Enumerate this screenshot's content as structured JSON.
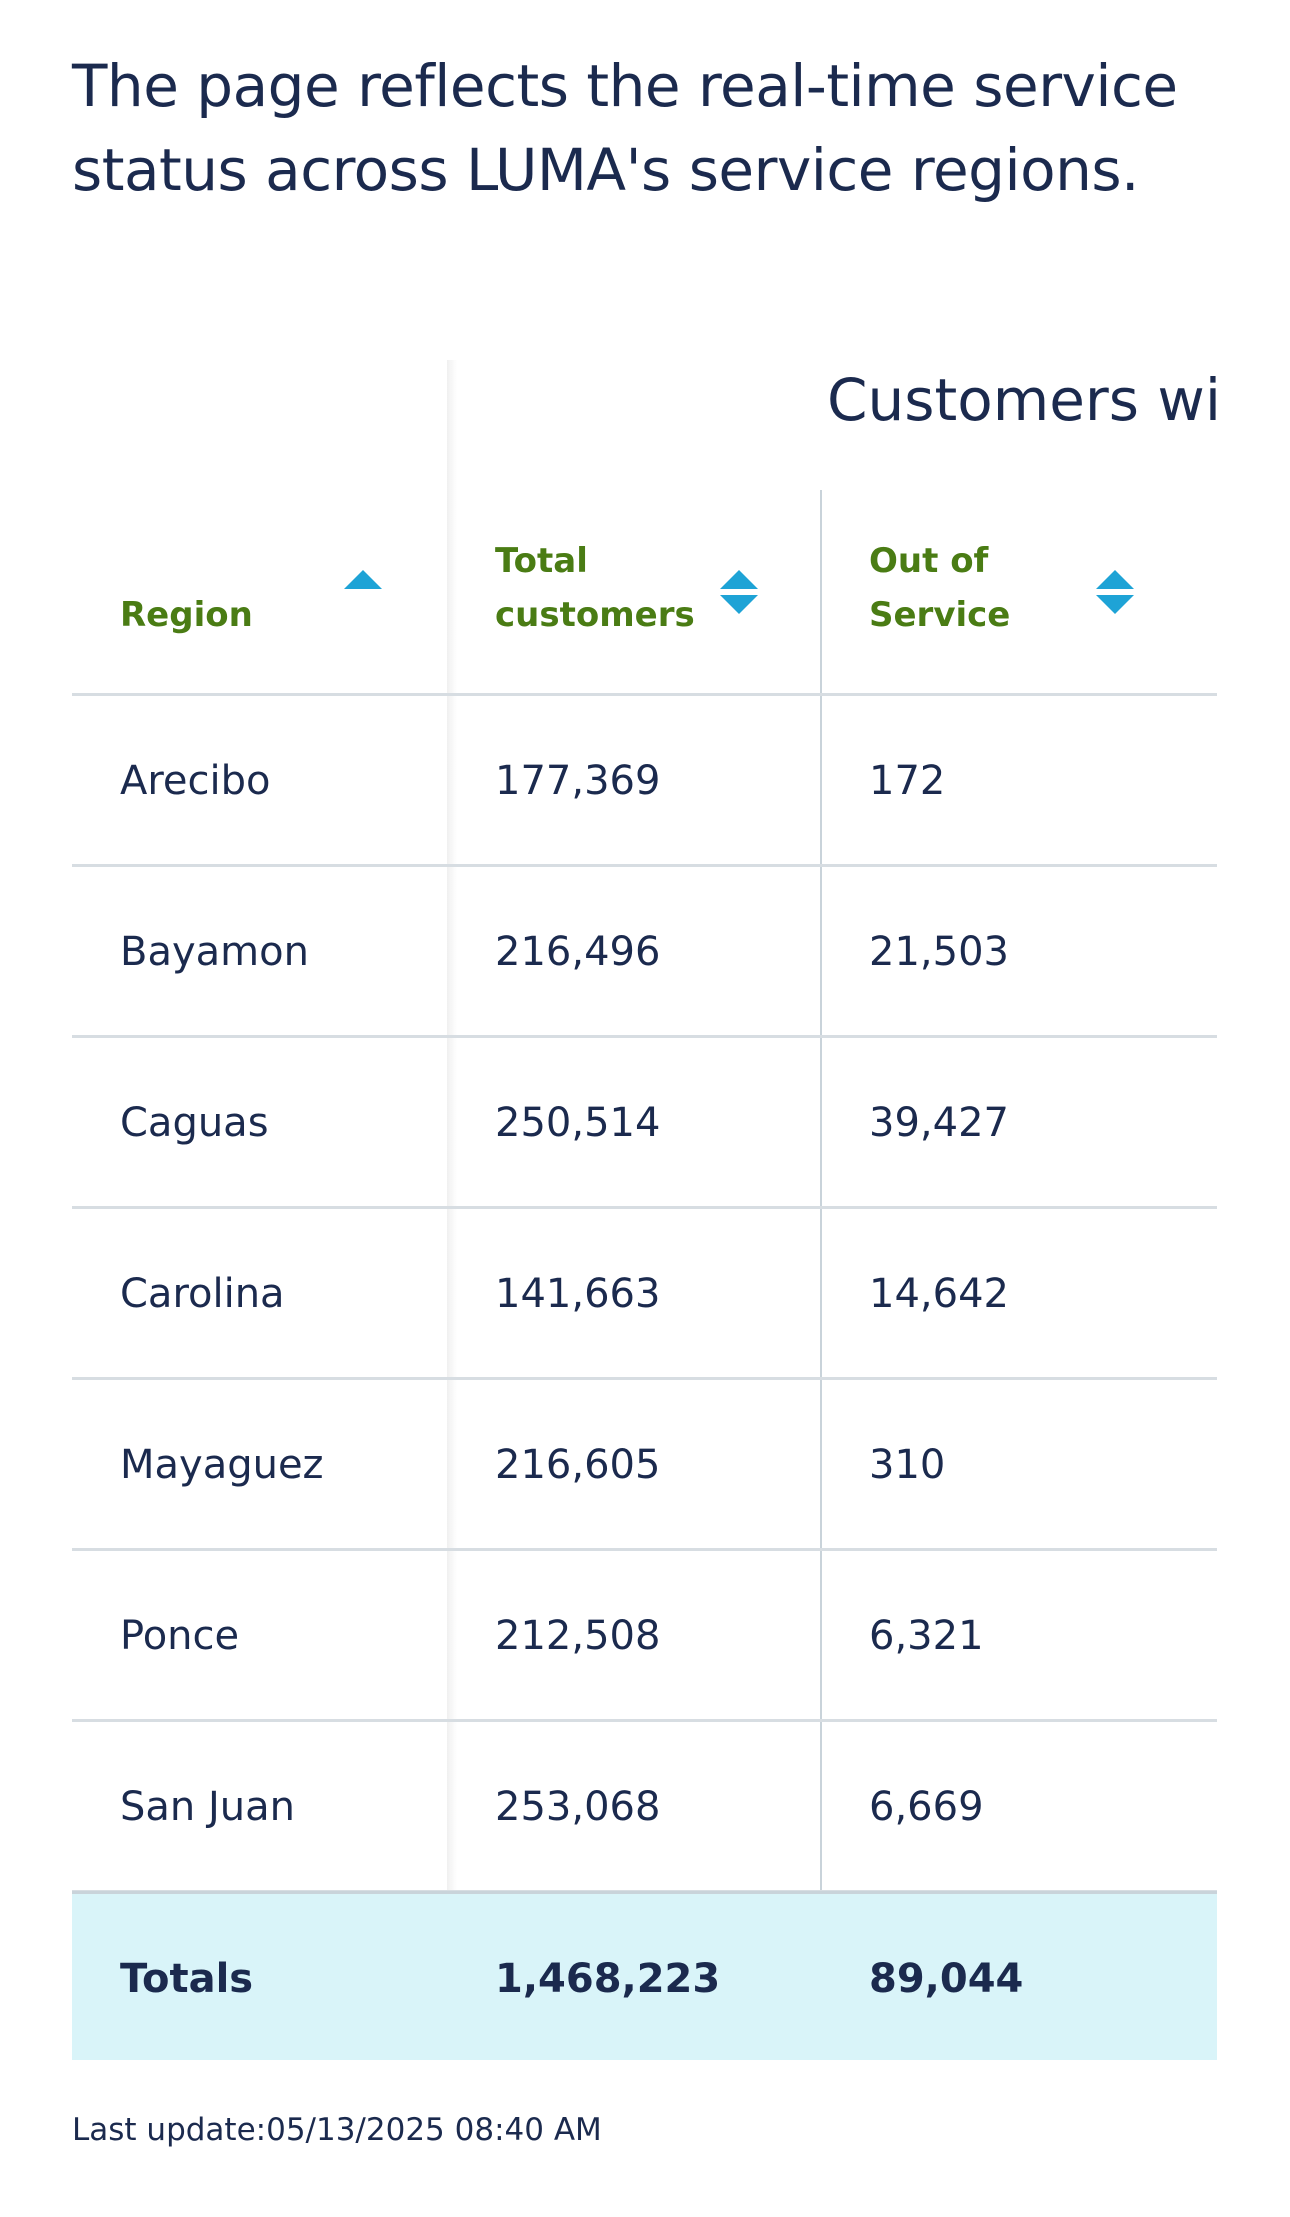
{
  "intro": "The page reflects the real-time service status across LUMA's service regions.",
  "table": {
    "group_title": "Customers wit",
    "headers": {
      "region": "Region",
      "total_customers_line1": "Total",
      "total_customers_line2": "customers",
      "out_of_service_line1": "Out of",
      "out_of_service_line2": "Service"
    },
    "sort_state": {
      "region": "ascending",
      "total_customers": "unsorted",
      "out_of_service": "unsorted"
    },
    "rows": [
      {
        "region": "Arecibo",
        "total": "177,369",
        "out": "172"
      },
      {
        "region": "Bayamon",
        "total": "216,496",
        "out": "21,503"
      },
      {
        "region": "Caguas",
        "total": "250,514",
        "out": "39,427"
      },
      {
        "region": "Carolina",
        "total": "141,663",
        "out": "14,642"
      },
      {
        "region": "Mayaguez",
        "total": "216,605",
        "out": "310"
      },
      {
        "region": "Ponce",
        "total": "212,508",
        "out": "6,321"
      },
      {
        "region": "San Juan",
        "total": "253,068",
        "out": "6,669"
      }
    ],
    "totals": {
      "label": "Totals",
      "total": "1,468,223",
      "out": "89,044"
    }
  },
  "footer": {
    "last_update": "Last update:05/13/2025 08:40 AM"
  },
  "colors": {
    "heading_text": "#1b2a4e",
    "column_header": "#4a7c14",
    "sort_icon": "#1ea3d6",
    "totals_bg": "#d9f4f9",
    "divider": "#d7dde2"
  },
  "icons": {
    "region_sort": "sort-ascending-icon",
    "total_sort": "sort-both-icon",
    "out_sort": "sort-both-icon"
  }
}
